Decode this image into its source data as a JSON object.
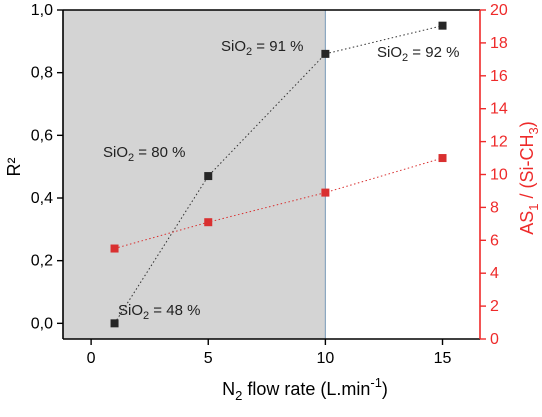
{
  "chart_data": {
    "type": "scatter",
    "xlabel": {
      "main": "N",
      "sub": "2",
      "rest": " flow rate (L.min",
      "sup": "-1",
      "close": ")"
    },
    "ylabel_left": "R²",
    "ylabel_right": {
      "main": "AS",
      "sub1": "1",
      "mid": " / (Si-CH",
      "sub2": "3",
      "close": ")"
    },
    "xlim": [
      -1.2,
      16.6
    ],
    "ylim_left": [
      -0.05,
      1.0
    ],
    "ylim_right": [
      0,
      20
    ],
    "x_ticks": [
      "0",
      "5",
      "10",
      "15"
    ],
    "y_ticks_left": [
      "0,0",
      "0,2",
      "0,4",
      "0,6",
      "0,8",
      "1,0"
    ],
    "y_ticks_right": [
      "0",
      "2",
      "4",
      "6",
      "8",
      "10",
      "12",
      "14",
      "16",
      "18",
      "20"
    ],
    "shaded_region": {
      "x_from": -1.2,
      "x_to": 10,
      "color": "#d4d4d4"
    },
    "colors": {
      "left_series": "#333333",
      "right_series": "#d93030",
      "right_axis": "#ee2a2a"
    },
    "series": [
      {
        "axis": "left",
        "marker_color": "#262626",
        "line": "dotted",
        "x": [
          1,
          5,
          10,
          15
        ],
        "y": [
          0.0,
          0.47,
          0.86,
          0.95
        ]
      },
      {
        "axis": "right",
        "marker_color": "#d93030",
        "line": "dotted",
        "x": [
          1,
          5,
          10,
          15
        ],
        "y": [
          5.5,
          7.1,
          8.9,
          11.0
        ]
      }
    ],
    "annotations": [
      {
        "pre": "SiO",
        "sub": "2",
        "post": " = 48 %"
      },
      {
        "pre": "SiO",
        "sub": "2",
        "post": " = 80 %"
      },
      {
        "pre": "SiO",
        "sub": "2",
        "post": " = 91 %"
      },
      {
        "pre": "SiO",
        "sub": "2",
        "post": " = 92 %"
      }
    ]
  }
}
